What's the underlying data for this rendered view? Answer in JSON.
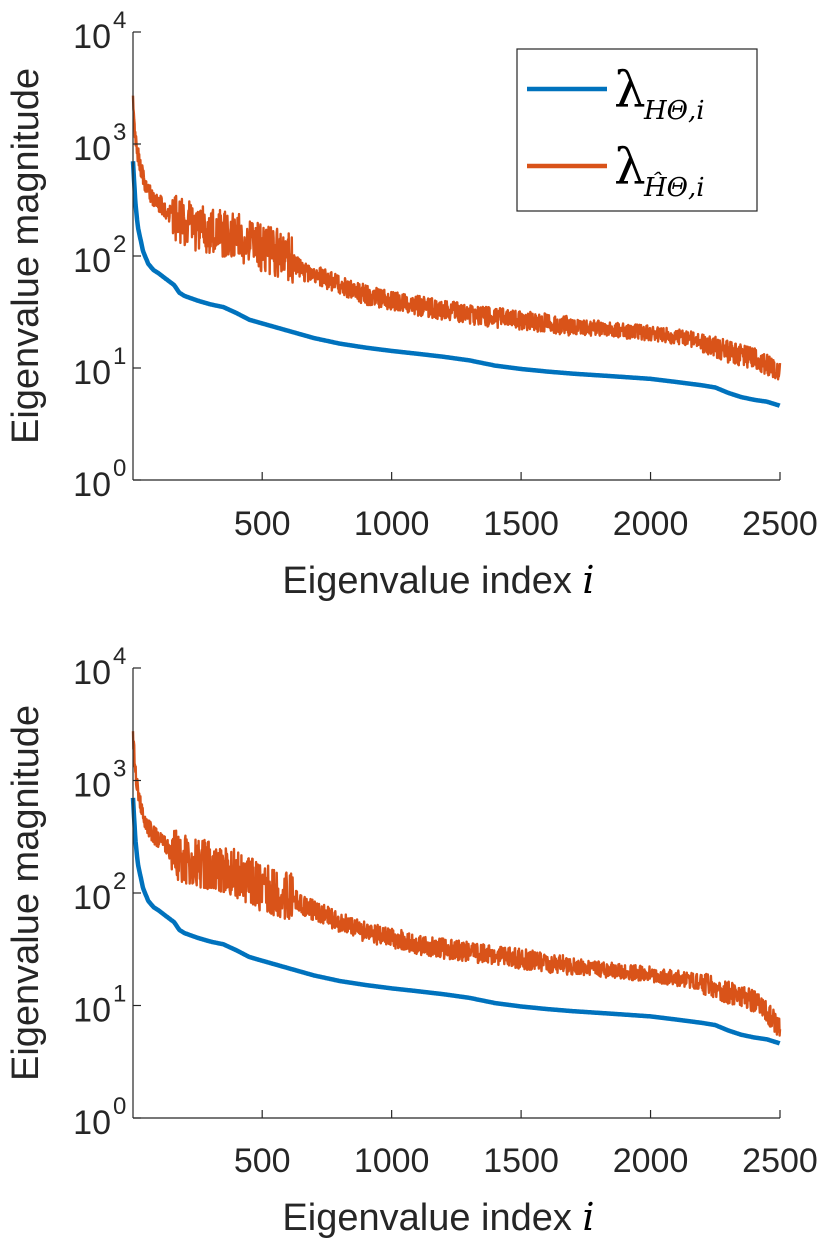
{
  "chart_data": [
    {
      "type": "line",
      "title": "",
      "xlabel": "Eigenvalue index",
      "xlabel_math": "i",
      "ylabel": "Eigenvalue magnitude",
      "xlim": [
        1,
        2500
      ],
      "ylim": [
        1,
        10000
      ],
      "yscale": "log",
      "xticks": [
        500,
        1000,
        1500,
        2000,
        2500
      ],
      "yticks": [
        {
          "base": "10",
          "exp": "0",
          "value": 1
        },
        {
          "base": "10",
          "exp": "1",
          "value": 10
        },
        {
          "base": "10",
          "exp": "2",
          "value": 100
        },
        {
          "base": "10",
          "exp": "3",
          "value": 1000
        },
        {
          "base": "10",
          "exp": "4",
          "value": 10000
        }
      ],
      "grid": false,
      "legend": {
        "placement": "top-right",
        "entries": [
          {
            "lambda": "λ",
            "sub": "HΘ,i",
            "hat": false,
            "color": "#0072BD"
          },
          {
            "lambda": "λ",
            "sub": "ĤΘ,i",
            "hat": true,
            "color": "#D95319"
          }
        ]
      },
      "series": [
        {
          "color": "#0072BD",
          "x": [
            1,
            10,
            20,
            40,
            60,
            80,
            100,
            130,
            160,
            180,
            200,
            250,
            300,
            350,
            400,
            450,
            500,
            600,
            700,
            800,
            900,
            1000,
            1100,
            1200,
            1300,
            1400,
            1500,
            1600,
            1700,
            1800,
            1900,
            2000,
            2100,
            2200,
            2250,
            2300,
            2350,
            2400,
            2450,
            2500
          ],
          "y": [
            700,
            300,
            180,
            110,
            85,
            75,
            70,
            62,
            55,
            47,
            44,
            40,
            37,
            35,
            31,
            27,
            25,
            21.5,
            18.5,
            16.5,
            15.2,
            14.2,
            13.4,
            12.6,
            11.7,
            10.5,
            9.8,
            9.3,
            8.9,
            8.6,
            8.3,
            8.0,
            7.5,
            7.0,
            6.7,
            6.0,
            5.5,
            5.2,
            5.0,
            4.6
          ]
        },
        {
          "color": "#D95319",
          "noisy": true,
          "x": [
            1,
            10,
            20,
            40,
            60,
            80,
            100,
            150,
            200,
            300,
            400,
            500,
            600,
            650,
            700,
            800,
            900,
            1000,
            1100,
            1200,
            1300,
            1400,
            1500,
            1600,
            1700,
            1800,
            1900,
            2000,
            2100,
            2200,
            2300,
            2400,
            2450,
            2500
          ],
          "y": [
            2500,
            1200,
            800,
            500,
            380,
            330,
            300,
            230,
            190,
            170,
            150,
            120,
            100,
            75,
            68,
            55,
            45,
            40,
            36,
            33,
            30,
            28,
            27,
            25,
            23.5,
            22.5,
            21.5,
            20.5,
            19,
            17.5,
            14,
            12,
            10.5,
            9
          ]
        }
      ]
    },
    {
      "type": "line",
      "title": "",
      "xlabel": "Eigenvalue index",
      "xlabel_math": "i",
      "ylabel": "Eigenvalue magnitude",
      "xlim": [
        1,
        2500
      ],
      "ylim": [
        1,
        10000
      ],
      "yscale": "log",
      "xticks": [
        500,
        1000,
        1500,
        2000,
        2500
      ],
      "yticks": [
        {
          "base": "10",
          "exp": "0",
          "value": 1
        },
        {
          "base": "10",
          "exp": "1",
          "value": 10
        },
        {
          "base": "10",
          "exp": "2",
          "value": 100
        },
        {
          "base": "10",
          "exp": "3",
          "value": 1000
        },
        {
          "base": "10",
          "exp": "4",
          "value": 10000
        }
      ],
      "grid": false,
      "series": [
        {
          "color": "#0072BD",
          "x": [
            1,
            10,
            20,
            40,
            60,
            80,
            100,
            130,
            160,
            180,
            200,
            250,
            300,
            350,
            400,
            450,
            500,
            600,
            700,
            800,
            900,
            1000,
            1100,
            1200,
            1300,
            1400,
            1500,
            1600,
            1700,
            1800,
            1900,
            2000,
            2100,
            2200,
            2250,
            2300,
            2350,
            2400,
            2450,
            2500
          ],
          "y": [
            700,
            300,
            180,
            110,
            85,
            75,
            70,
            62,
            55,
            47,
            44,
            40,
            37,
            35,
            31,
            27,
            25,
            21.5,
            18.5,
            16.5,
            15.2,
            14.2,
            13.4,
            12.6,
            11.7,
            10.5,
            9.8,
            9.3,
            8.9,
            8.6,
            8.3,
            8.0,
            7.5,
            7.0,
            6.7,
            6.0,
            5.5,
            5.2,
            5.0,
            4.6
          ]
        },
        {
          "color": "#D95319",
          "noisy": true,
          "x": [
            1,
            10,
            20,
            40,
            60,
            80,
            100,
            150,
            200,
            300,
            400,
            500,
            600,
            650,
            700,
            800,
            900,
            1000,
            1100,
            1200,
            1300,
            1400,
            1500,
            1600,
            1700,
            1800,
            1900,
            2000,
            2100,
            2200,
            2300,
            2400,
            2450,
            2500
          ],
          "y": [
            2500,
            1200,
            800,
            500,
            380,
            330,
            300,
            230,
            200,
            175,
            150,
            110,
            95,
            80,
            70,
            55,
            45,
            40,
            35,
            32,
            30,
            28,
            26,
            24,
            22.5,
            21,
            20,
            19,
            17.5,
            16,
            13,
            11,
            8.5,
            6.5
          ]
        }
      ]
    }
  ]
}
